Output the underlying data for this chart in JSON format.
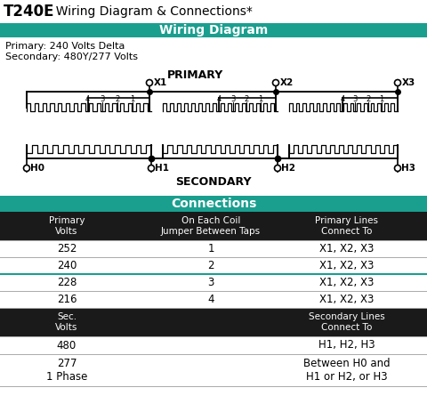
{
  "title_bold": "T240E",
  "title_rest": "  Wiring Diagram & Connections*",
  "section1_header": "Wiring Diagram",
  "info_line1": "Primary: 240 Volts Delta",
  "info_line2": "Secondary: 480Y/277 Volts",
  "section2_header": "Connections",
  "teal_color": "#1a9f8f",
  "black_bg": "#1a1a1a",
  "white": "#ffffff",
  "table_headers": [
    "Primary\nVolts",
    "On Each Coil\nJumper Between Taps",
    "Primary Lines\nConnect To"
  ],
  "table_rows": [
    [
      "252",
      "1",
      "X1, X2, X3"
    ],
    [
      "240",
      "2",
      "X1, X2, X3"
    ],
    [
      "228",
      "3",
      "X1, X2, X3"
    ],
    [
      "216",
      "4",
      "X1, X2, X3"
    ]
  ],
  "sec_header": [
    "Sec.\nVolts",
    "",
    "Secondary Lines\nConnect To"
  ],
  "sec_rows": [
    [
      "480",
      "",
      "H1, H2, H3"
    ],
    [
      "277\n1 Phase",
      "",
      "Between H0 and\nH1 or H2, or H3"
    ]
  ],
  "teal_row_index": 2,
  "bg_color": "#ffffff"
}
